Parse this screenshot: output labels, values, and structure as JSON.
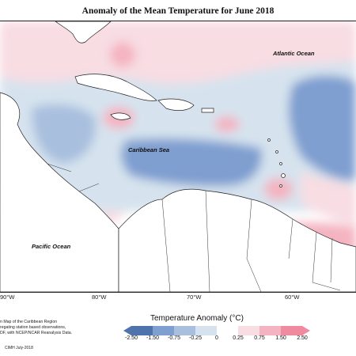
{
  "title": "Anomaly of the Mean Temperature for June 2018",
  "ocean_labels": {
    "atlantic": "Atlantic Ocean",
    "caribbean": "Caribbean Sea",
    "pacific": "Pacific Ocean"
  },
  "longitude_ticks": [
    "90°W",
    "80°W",
    "70°W",
    "60°W"
  ],
  "notes": {
    "line1": "n Map of the Caribbean Region",
    "line2": "regating station based observations,",
    "line3": "DF, with NCEP/NCAR Reanalysis Data."
  },
  "legend": {
    "title": "Temperature Anomaly (°C)",
    "labels": [
      "-2.50",
      "-1.50",
      "-0.75",
      "-0.25",
      "0",
      "0.25",
      "0.75",
      "1.50",
      "2.50"
    ],
    "colors": [
      "#4f74ad",
      "#7f9fd0",
      "#a8bfde",
      "#d6e3ee",
      "#ffffff",
      "#f8dde3",
      "#f4b3c1",
      "#f08b9f"
    ]
  },
  "credit": "CIMH July-2018"
}
